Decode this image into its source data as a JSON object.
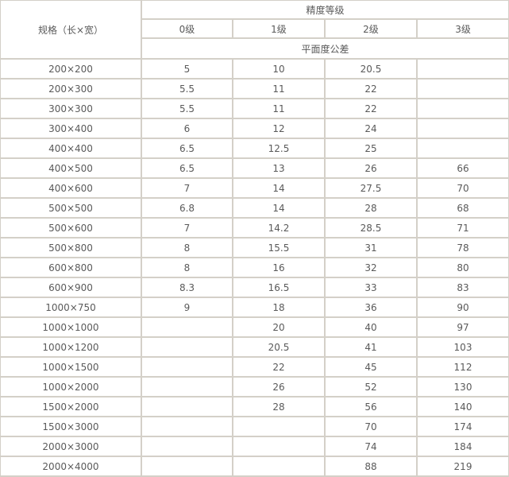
{
  "header": {
    "spec_label": "规格（长×宽）",
    "grade_group": "精度等级",
    "grades": [
      "0级",
      "1级",
      "2级",
      "3级"
    ],
    "tolerance_label": "平面度公差"
  },
  "rows": [
    [
      "200×200",
      "5",
      "10",
      "20.5",
      ""
    ],
    [
      "200×300",
      "5.5",
      "11",
      "22",
      ""
    ],
    [
      "300×300",
      "5.5",
      "11",
      "22",
      ""
    ],
    [
      "300×400",
      "6",
      "12",
      "24",
      ""
    ],
    [
      "400×400",
      "6.5",
      "12.5",
      "25",
      ""
    ],
    [
      "400×500",
      "6.5",
      "13",
      "26",
      "66"
    ],
    [
      "400×600",
      "7",
      "14",
      "27.5",
      "70"
    ],
    [
      "500×500",
      "6.8",
      "14",
      "28",
      "68"
    ],
    [
      "500×600",
      "7",
      "14.2",
      "28.5",
      "71"
    ],
    [
      "500×800",
      "8",
      "15.5",
      "31",
      "78"
    ],
    [
      "600×800",
      "8",
      "16",
      "32",
      "80"
    ],
    [
      "600×900",
      "8.3",
      "16.5",
      "33",
      "83"
    ],
    [
      "1000×750",
      "9",
      "18",
      "36",
      "90"
    ],
    [
      "1000×1000",
      "",
      "20",
      "40",
      "97"
    ],
    [
      "1000×1200",
      "",
      "20.5",
      "41",
      "103"
    ],
    [
      "1000×1500",
      "",
      "22",
      "45",
      "112"
    ],
    [
      "1000×2000",
      "",
      "26",
      "52",
      "130"
    ],
    [
      "1500×2000",
      "",
      "28",
      "56",
      "140"
    ],
    [
      "1500×3000",
      "",
      "",
      "70",
      "174"
    ],
    [
      "2000×3000",
      "",
      "",
      "74",
      "184"
    ],
    [
      "2000×4000",
      "",
      "",
      "88",
      "219"
    ]
  ]
}
